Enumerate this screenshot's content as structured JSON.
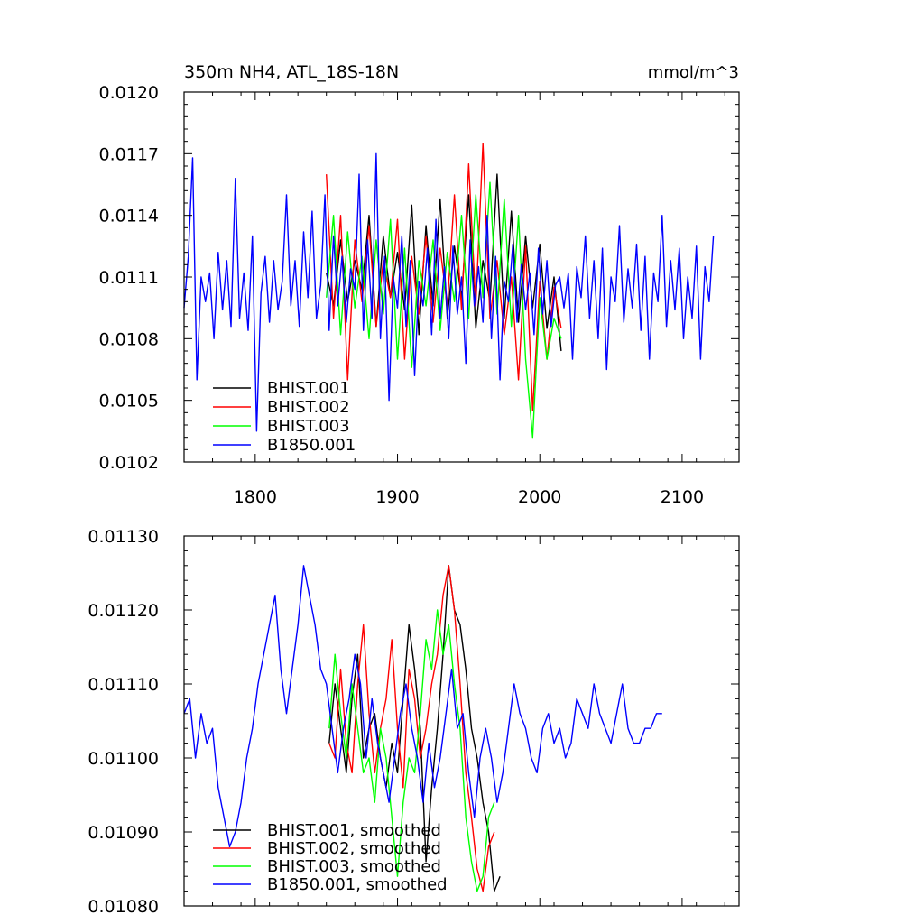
{
  "chart_data": [
    {
      "type": "line",
      "title": "350m NH4, ATL_18S-18N",
      "units": "mmol/m^3",
      "xlim": [
        1750,
        2140
      ],
      "ylim": [
        0.0102,
        0.012
      ],
      "xticks": [
        1800,
        1900,
        2000,
        2100
      ],
      "xtick_labels": [
        "1800",
        "1900",
        "2000",
        "2100"
      ],
      "yticks": [
        0.0102,
        0.0105,
        0.0108,
        0.0111,
        0.0114,
        0.0117,
        0.012
      ],
      "ytick_labels": [
        "0.0102",
        "0.0105",
        "0.0108",
        "0.0111",
        "0.0114",
        "0.0117",
        "0.0120"
      ],
      "grid": false,
      "legend_position": "bottom-left",
      "series": [
        {
          "name": "BHIST.001",
          "color": "#000000",
          "x_start": 1850,
          "x_step": 5,
          "values": [
            0.01112,
            0.01096,
            0.01128,
            0.01098,
            0.01118,
            0.01104,
            0.0114,
            0.01086,
            0.0113,
            0.011,
            0.01122,
            0.01094,
            0.01145,
            0.01082,
            0.01135,
            0.01096,
            0.01148,
            0.0109,
            0.01125,
            0.011,
            0.0115,
            0.01085,
            0.01118,
            0.01098,
            0.0116,
            0.0109,
            0.01142,
            0.01088,
            0.0113,
            0.01095,
            0.01126,
            0.01085,
            0.0111,
            0.01074
          ]
        },
        {
          "name": "BHIST.002",
          "color": "#ff0000",
          "x_start": 1850,
          "x_step": 5,
          "values": [
            0.0116,
            0.0109,
            0.0114,
            0.0106,
            0.01128,
            0.01098,
            0.01135,
            0.01086,
            0.01118,
            0.011,
            0.01138,
            0.0107,
            0.0112,
            0.01092,
            0.0113,
            0.01088,
            0.01124,
            0.01096,
            0.0115,
            0.01094,
            0.01165,
            0.01096,
            0.01175,
            0.0109,
            0.01118,
            0.01082,
            0.0111,
            0.0106,
            0.01125,
            0.01045,
            0.01108,
            0.0107,
            0.01105,
            0.01085
          ]
        },
        {
          "name": "BHIST.003",
          "color": "#00ff00",
          "x_start": 1850,
          "x_step": 5,
          "values": [
            0.011,
            0.0114,
            0.01082,
            0.01132,
            0.01095,
            0.0112,
            0.0108,
            0.01128,
            0.01092,
            0.01138,
            0.0107,
            0.01124,
            0.01066,
            0.01118,
            0.01096,
            0.01128,
            0.01084,
            0.01122,
            0.01098,
            0.0114,
            0.0109,
            0.0115,
            0.011,
            0.01156,
            0.01092,
            0.01148,
            0.01086,
            0.0114,
            0.0107,
            0.01032,
            0.011,
            0.0107,
            0.0109,
            0.0108
          ]
        },
        {
          "name": "B1850.001",
          "color": "#0000ff",
          "x_start": 1750,
          "x_step": 3,
          "values": [
            0.01095,
            0.0112,
            0.01168,
            0.0106,
            0.0111,
            0.01098,
            0.01112,
            0.0108,
            0.01122,
            0.01094,
            0.01118,
            0.01086,
            0.01158,
            0.0109,
            0.01112,
            0.01084,
            0.0113,
            0.01035,
            0.01102,
            0.0112,
            0.01088,
            0.01118,
            0.01094,
            0.01108,
            0.0115,
            0.01096,
            0.01118,
            0.01086,
            0.01132,
            0.011,
            0.01142,
            0.0109,
            0.01106,
            0.0115,
            0.01084,
            0.0113,
            0.01096,
            0.0112,
            0.01088,
            0.01114,
            0.01104,
            0.0116,
            0.01084,
            0.01128,
            0.0109,
            0.0117,
            0.0108,
            0.0112,
            0.0105,
            0.0111,
            0.01095,
            0.0113,
            0.01086,
            0.01118,
            0.01062,
            0.01108,
            0.01096,
            0.01124,
            0.01082,
            0.01138,
            0.0109,
            0.01115,
            0.0108,
            0.01125,
            0.01092,
            0.0111,
            0.01068,
            0.01128,
            0.01096,
            0.01115,
            0.01088,
            0.0114,
            0.0108,
            0.0112,
            0.0106,
            0.01108,
            0.01098,
            0.01126,
            0.01088,
            0.01116,
            0.01094,
            0.01112,
            0.01082,
            0.01124,
            0.01092,
            0.01118,
            0.01086,
            0.01106,
            0.0111,
            0.01095,
            0.01112,
            0.0107,
            0.01115,
            0.011,
            0.0113,
            0.0109,
            0.01118,
            0.0108,
            0.01124,
            0.01065,
            0.0111,
            0.01098,
            0.01135,
            0.01088,
            0.01114,
            0.01095,
            0.01126,
            0.01084,
            0.0112,
            0.0107,
            0.01112,
            0.01098,
            0.0114,
            0.01086,
            0.01118,
            0.01094,
            0.01124,
            0.0108,
            0.0111,
            0.0109,
            0.01125,
            0.0107,
            0.01115,
            0.01098,
            0.0113
          ]
        }
      ]
    },
    {
      "type": "line",
      "xlim": [
        1750,
        2140
      ],
      "ylim": [
        0.0108,
        0.0113
      ],
      "xticks": [
        1800,
        1900,
        2000,
        2100
      ],
      "yticks": [
        0.0108,
        0.0109,
        0.011,
        0.0111,
        0.0112,
        0.0113
      ],
      "ytick_labels": [
        "0.01080",
        "0.01090",
        "0.01100",
        "0.01110",
        "0.01120",
        "0.01130"
      ],
      "grid": false,
      "legend_position": "bottom-left",
      "series": [
        {
          "name": "BHIST.001, smoothed",
          "color": "#000000",
          "x_start": 1852,
          "x_step": 4,
          "values": [
            0.01102,
            0.0111,
            0.01104,
            0.01098,
            0.01108,
            0.01114,
            0.011,
            0.01104,
            0.01106,
            0.011,
            0.01096,
            0.01102,
            0.01098,
            0.01108,
            0.01118,
            0.01112,
            0.01104,
            0.01086,
            0.01096,
            0.01104,
            0.01114,
            0.01126,
            0.0112,
            0.01118,
            0.01112,
            0.01104,
            0.011,
            0.01094,
            0.0109,
            0.01082,
            0.01084
          ]
        },
        {
          "name": "BHIST.002, smoothed",
          "color": "#ff0000",
          "x_start": 1852,
          "x_step": 4,
          "values": [
            0.01102,
            0.011,
            0.01112,
            0.01102,
            0.01098,
            0.0111,
            0.01118,
            0.01106,
            0.01098,
            0.01104,
            0.01108,
            0.01116,
            0.01104,
            0.01096,
            0.01112,
            0.01108,
            0.011,
            0.01104,
            0.0111,
            0.01114,
            0.01122,
            0.01126,
            0.0112,
            0.0111,
            0.01098,
            0.01092,
            0.01085,
            0.01082,
            0.01088,
            0.0109
          ]
        },
        {
          "name": "BHIST.003, smoothed",
          "color": "#00ff00",
          "x_start": 1852,
          "x_step": 4,
          "values": [
            0.01104,
            0.01114,
            0.01106,
            0.011,
            0.0111,
            0.01104,
            0.01098,
            0.011,
            0.01094,
            0.01104,
            0.011,
            0.01092,
            0.01084,
            0.01094,
            0.011,
            0.01098,
            0.01106,
            0.01116,
            0.01112,
            0.0112,
            0.01114,
            0.01118,
            0.0111,
            0.01104,
            0.01092,
            0.01086,
            0.01082,
            0.01084,
            0.01092,
            0.01094
          ]
        },
        {
          "name": "B1850.001, smoothed",
          "color": "#0000ff",
          "x_start": 1750,
          "x_step": 4,
          "values": [
            0.01106,
            0.01108,
            0.011,
            0.01106,
            0.01102,
            0.01104,
            0.01096,
            0.01092,
            0.01088,
            0.0109,
            0.01094,
            0.011,
            0.01104,
            0.0111,
            0.01114,
            0.01118,
            0.01122,
            0.01112,
            0.01106,
            0.01112,
            0.01118,
            0.01126,
            0.01122,
            0.01118,
            0.01112,
            0.0111,
            0.01104,
            0.01098,
            0.01104,
            0.01108,
            0.01114,
            0.0111,
            0.011,
            0.01108,
            0.01102,
            0.01098,
            0.01094,
            0.011,
            0.01106,
            0.0111,
            0.01104,
            0.011,
            0.01094,
            0.01102,
            0.01096,
            0.011,
            0.01106,
            0.01112,
            0.01104,
            0.01106,
            0.01098,
            0.01092,
            0.011,
            0.01104,
            0.011,
            0.01094,
            0.01098,
            0.01104,
            0.0111,
            0.01106,
            0.01104,
            0.011,
            0.01098,
            0.01104,
            0.01106,
            0.01102,
            0.01104,
            0.011,
            0.01102,
            0.01108,
            0.01106,
            0.01104,
            0.0111,
            0.01106,
            0.01104,
            0.01102,
            0.01106,
            0.0111,
            0.01104,
            0.01102,
            0.01102,
            0.01104,
            0.01104,
            0.01106,
            0.01106
          ]
        }
      ]
    }
  ]
}
